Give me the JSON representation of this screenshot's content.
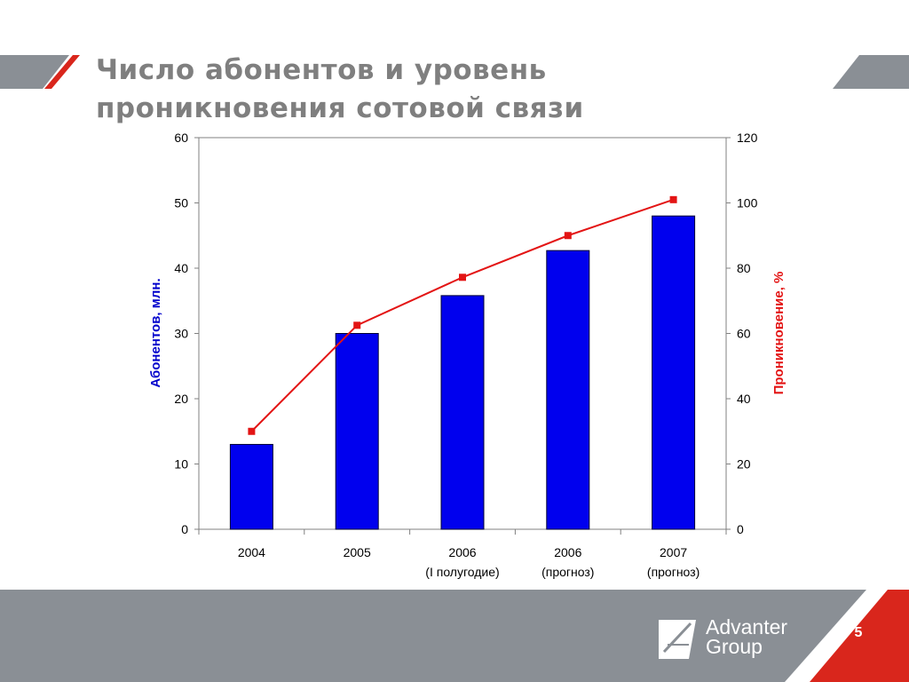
{
  "slide": {
    "title_line1": "Число абонентов и уровень",
    "title_line2": "проникновения сотовой связи",
    "page_number": "5"
  },
  "logo": {
    "name_line1": "Advanter",
    "name_line2": "Group"
  },
  "colors": {
    "bars": "#0000ee",
    "line": "#e31414",
    "title": "#7f7f7f",
    "band_grey": "#8a8f95",
    "accent_red": "#d9261c"
  },
  "chart_data": {
    "type": "bar",
    "categories": [
      [
        "2004"
      ],
      [
        "2005"
      ],
      [
        "2006",
        "(I полугодие)"
      ],
      [
        "2006",
        "(прогноз)"
      ],
      [
        "2007",
        "(прогноз)"
      ]
    ],
    "series": [
      {
        "name": "Абонентов, млн.",
        "type": "bar",
        "axis": "left",
        "values": [
          13,
          30,
          35.8,
          42.7,
          48
        ]
      },
      {
        "name": "Проникновение, %",
        "type": "line",
        "axis": "right",
        "values": [
          30,
          62.5,
          77.2,
          90,
          101
        ]
      }
    ],
    "ylabel_left": "Абонентов, млн.",
    "ylabel_right": "Проникновение, %",
    "ylim_left": [
      0,
      60
    ],
    "ylim_right": [
      0,
      120
    ],
    "yticks_left": [
      "0",
      "10",
      "20",
      "30",
      "40",
      "50",
      "60"
    ],
    "yticks_right": [
      "0",
      "20",
      "40",
      "60",
      "80",
      "100",
      "120"
    ],
    "grid": false
  }
}
